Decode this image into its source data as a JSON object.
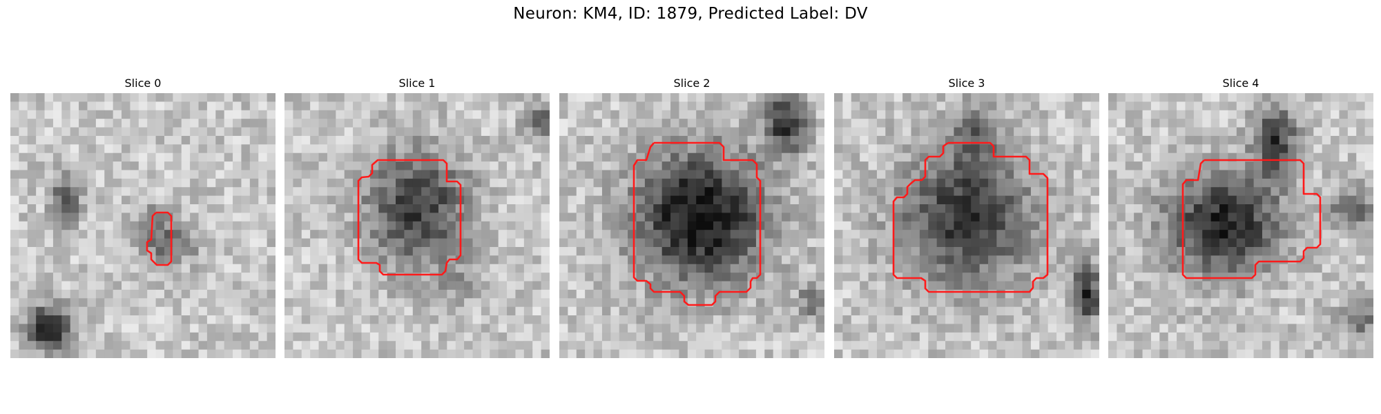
{
  "figure": {
    "title": "Neuron: KM4, ID: 1879, Predicted Label: DV",
    "colors": {
      "background": "#ffffff",
      "outline": "#ff1a1a"
    },
    "panels": [
      {
        "title": "Slice 0"
      },
      {
        "title": "Slice 1"
      },
      {
        "title": "Slice 2"
      },
      {
        "title": "Slice 3"
      },
      {
        "title": "Slice 4"
      }
    ]
  }
}
